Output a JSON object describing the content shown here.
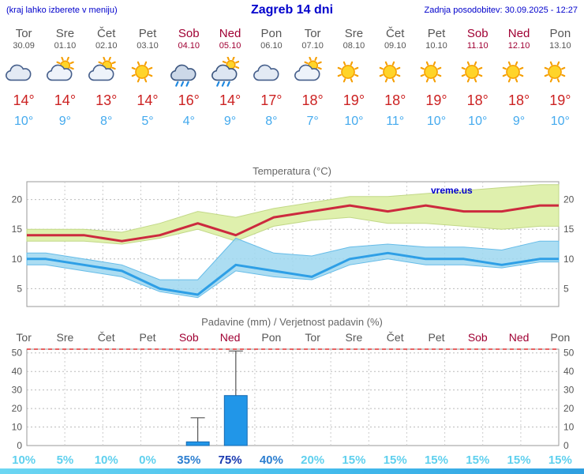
{
  "header": {
    "note": "(kraj lahko izberete v meniju)",
    "title": "Zagreb 14 dni",
    "updated": "Zadnja posodobitev: 30.09.2025 - 12:27"
  },
  "days": [
    {
      "name": "Tor",
      "date": "30.09",
      "weekend": false,
      "icon": "cloudy",
      "tmax_label": "14°",
      "tmin_label": "10°"
    },
    {
      "name": "Sre",
      "date": "01.10",
      "weekend": false,
      "icon": "sun-cloud",
      "tmax_label": "14°",
      "tmin_label": "9°"
    },
    {
      "name": "Čet",
      "date": "02.10",
      "weekend": false,
      "icon": "sun-cloud",
      "tmax_label": "13°",
      "tmin_label": "8°"
    },
    {
      "name": "Pet",
      "date": "03.10",
      "weekend": false,
      "icon": "sunny",
      "tmax_label": "14°",
      "tmin_label": "5°"
    },
    {
      "name": "Sob",
      "date": "04.10",
      "weekend": true,
      "icon": "rain",
      "tmax_label": "16°",
      "tmin_label": "4°"
    },
    {
      "name": "Ned",
      "date": "05.10",
      "weekend": true,
      "icon": "sun-rain",
      "tmax_label": "14°",
      "tmin_label": "9°"
    },
    {
      "name": "Pon",
      "date": "06.10",
      "weekend": false,
      "icon": "cloudy",
      "tmax_label": "17°",
      "tmin_label": "8°"
    },
    {
      "name": "Tor",
      "date": "07.10",
      "weekend": false,
      "icon": "sun-cloud",
      "tmax_label": "18°",
      "tmin_label": "7°"
    },
    {
      "name": "Sre",
      "date": "08.10",
      "weekend": false,
      "icon": "sunny",
      "tmax_label": "19°",
      "tmin_label": "10°"
    },
    {
      "name": "Čet",
      "date": "09.10",
      "weekend": false,
      "icon": "sunny",
      "tmax_label": "18°",
      "tmin_label": "11°"
    },
    {
      "name": "Pet",
      "date": "10.10",
      "weekend": false,
      "icon": "sunny",
      "tmax_label": "19°",
      "tmin_label": "10°"
    },
    {
      "name": "Sob",
      "date": "11.10",
      "weekend": true,
      "icon": "sunny",
      "tmax_label": "18°",
      "tmin_label": "10°"
    },
    {
      "name": "Ned",
      "date": "12.10",
      "weekend": true,
      "icon": "sunny",
      "tmax_label": "18°",
      "tmin_label": "9°"
    },
    {
      "name": "Pon",
      "date": "13.10",
      "weekend": false,
      "icon": "sunny",
      "tmax_label": "19°",
      "tmin_label": "10°"
    }
  ],
  "chart_data": [
    {
      "type": "line",
      "title": "Temperatura (°C)",
      "watermark": "vreme.us",
      "x": [
        "Tor",
        "Sre",
        "Čet",
        "Pet",
        "Sob",
        "Ned",
        "Pon",
        "Tor",
        "Sre",
        "Čet",
        "Pet",
        "Sob",
        "Ned",
        "Pon"
      ],
      "ylim": [
        2,
        23
      ],
      "yticks": [
        5,
        10,
        15,
        20
      ],
      "grid": true,
      "series": [
        {
          "name": "tmax",
          "values": [
            14,
            14,
            13,
            14,
            16,
            14,
            17,
            18,
            19,
            18,
            19,
            18,
            18,
            19
          ]
        },
        {
          "name": "tmax_hi",
          "values": [
            15,
            15,
            14.5,
            16,
            18,
            17,
            18.5,
            19.5,
            20.5,
            20.5,
            21,
            21.5,
            22,
            22.5
          ]
        },
        {
          "name": "tmax_lo",
          "values": [
            13,
            13,
            12.5,
            13.5,
            15,
            13,
            15.5,
            16.5,
            17,
            16,
            16,
            15.5,
            15,
            15.5
          ]
        },
        {
          "name": "tmin",
          "values": [
            10,
            9,
            8,
            5,
            4,
            9,
            8,
            7,
            10,
            11,
            10,
            10,
            9,
            10
          ]
        },
        {
          "name": "tmin_hi",
          "values": [
            11,
            10,
            9,
            6.5,
            6.5,
            13.5,
            11,
            10.5,
            12,
            12.5,
            12,
            12,
            11.5,
            13
          ]
        },
        {
          "name": "tmin_lo",
          "values": [
            9,
            8,
            7,
            4.5,
            3.5,
            8,
            7,
            6.5,
            9,
            10,
            9,
            9,
            8.5,
            9.5
          ]
        }
      ]
    },
    {
      "type": "bar",
      "title": "Padavine (mm) / Verjetnost padavin (%)",
      "categories": [
        "Tor",
        "Sre",
        "Čet",
        "Pet",
        "Sob",
        "Ned",
        "Pon",
        "Tor",
        "Sre",
        "Čet",
        "Pet",
        "Sob",
        "Ned",
        "Pon"
      ],
      "values": [
        0,
        0,
        0,
        0,
        2,
        27,
        0,
        0,
        0,
        0,
        0,
        0,
        0,
        0
      ],
      "whiskers": [
        0,
        0,
        0,
        0,
        15,
        51,
        0,
        0,
        0,
        0,
        0,
        0,
        0,
        0
      ],
      "probabilities": [
        10,
        5,
        10,
        0,
        35,
        75,
        40,
        20,
        15,
        15,
        15,
        15,
        15,
        15
      ],
      "prob_suffix": "%",
      "ylim": [
        0,
        52
      ],
      "yticks": [
        0,
        10,
        20,
        30,
        40,
        50
      ],
      "grid": true
    }
  ],
  "colors": {
    "header_text": "#0000cc",
    "weekday_text": "#565656",
    "weekend_text": "#a00033",
    "tmax_text": "#cc2222",
    "tmin_text": "#44aaee",
    "tmax_line": "#cc2a3e",
    "tmax_band": "#dff0ad",
    "tmin_line": "#2e9fe6",
    "tmin_band": "#9ed7f0",
    "bar_fill": "#2196e8",
    "bar_stroke": "#1468b0",
    "prob_low": "#5fd0ee",
    "prob_mid": "#2d7fd0",
    "prob_high": "#1a3ab0",
    "top_red_line": "#e03030"
  }
}
